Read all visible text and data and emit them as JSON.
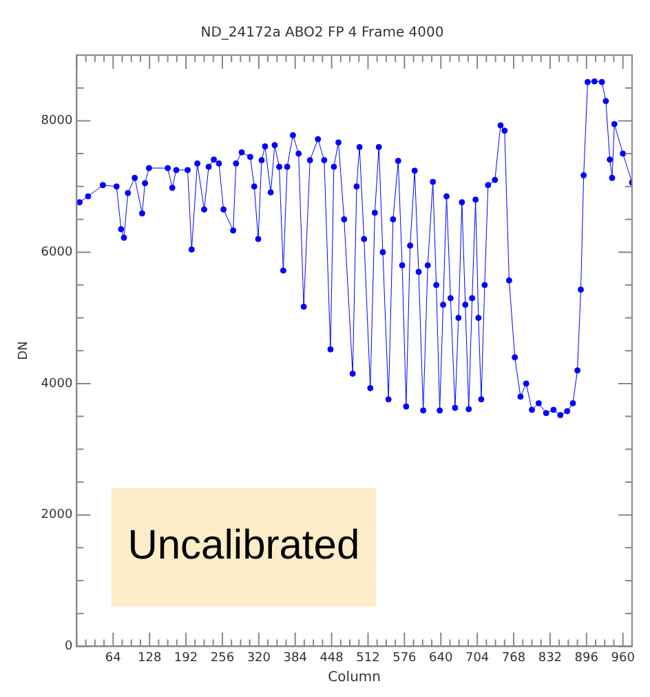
{
  "chart_data": {
    "type": "line",
    "title": "ND_24172a ABO2 FP 4 Frame 4000",
    "xlabel": "Column",
    "ylabel": "DN",
    "annotations": [
      "Uncalibrated"
    ],
    "xlim": [
      0,
      976
    ],
    "xticks": [
      64,
      128,
      192,
      256,
      320,
      384,
      448,
      512,
      576,
      640,
      704,
      768,
      832,
      896,
      960
    ],
    "ylim": [
      0,
      9000
    ],
    "yticks": [
      0,
      2000,
      4000,
      6000,
      8000
    ],
    "grid": false,
    "legend": false,
    "marker": "circle",
    "line_style": "solid",
    "series": [
      {
        "color": "#0000ff",
        "x": [
          5,
          20,
          46,
          70,
          78,
          83,
          90,
          102,
          115,
          120,
          127,
          160,
          168,
          175,
          195,
          202,
          212,
          224,
          232,
          241,
          250,
          258,
          275,
          280,
          290,
          305,
          312,
          319,
          325,
          331,
          341,
          348,
          356,
          363,
          370,
          380,
          390,
          399,
          410,
          424,
          435,
          446,
          452,
          460,
          470,
          485,
          492,
          497,
          505,
          516,
          524,
          531,
          538,
          548,
          556,
          565,
          572,
          579,
          586,
          594,
          601,
          609,
          617,
          626,
          632,
          638,
          644,
          650,
          657,
          665,
          671,
          677,
          683,
          689,
          695,
          701,
          706,
          711,
          717,
          723,
          735,
          745,
          752,
          760,
          770,
          780,
          790,
          800,
          812,
          825,
          838,
          850,
          862,
          872,
          880,
          886,
          891,
          898,
          910,
          923,
          930,
          937,
          941,
          945,
          960,
          976
        ],
        "values": [
          6760,
          6850,
          7020,
          7000,
          6350,
          6220,
          6900,
          7130,
          6590,
          7050,
          7280,
          7280,
          6980,
          7250,
          7250,
          6040,
          7350,
          6650,
          7300,
          7410,
          7350,
          6650,
          6330,
          7350,
          7520,
          7450,
          7000,
          6200,
          7400,
          7610,
          6910,
          7630,
          7300,
          5720,
          7300,
          7780,
          7500,
          5170,
          7400,
          7720,
          7400,
          4520,
          7300,
          7670,
          6500,
          4150,
          7000,
          7600,
          6200,
          3930,
          6600,
          7600,
          6000,
          3760,
          6500,
          7390,
          5800,
          3650,
          6100,
          7240,
          5700,
          3590,
          5800,
          7070,
          5500,
          3590,
          5200,
          6850,
          5300,
          3630,
          5000,
          6760,
          5200,
          3610,
          5300,
          6800,
          5000,
          3760,
          5500,
          7020,
          7100,
          7930,
          7850,
          5570,
          4400,
          3800,
          4000,
          3600,
          3700,
          3550,
          3600,
          3520,
          3580,
          3700,
          4200,
          5430,
          7170,
          8590,
          8600,
          8590,
          8300,
          7410,
          7130,
          7950,
          7500,
          7060
        ]
      }
    ]
  }
}
